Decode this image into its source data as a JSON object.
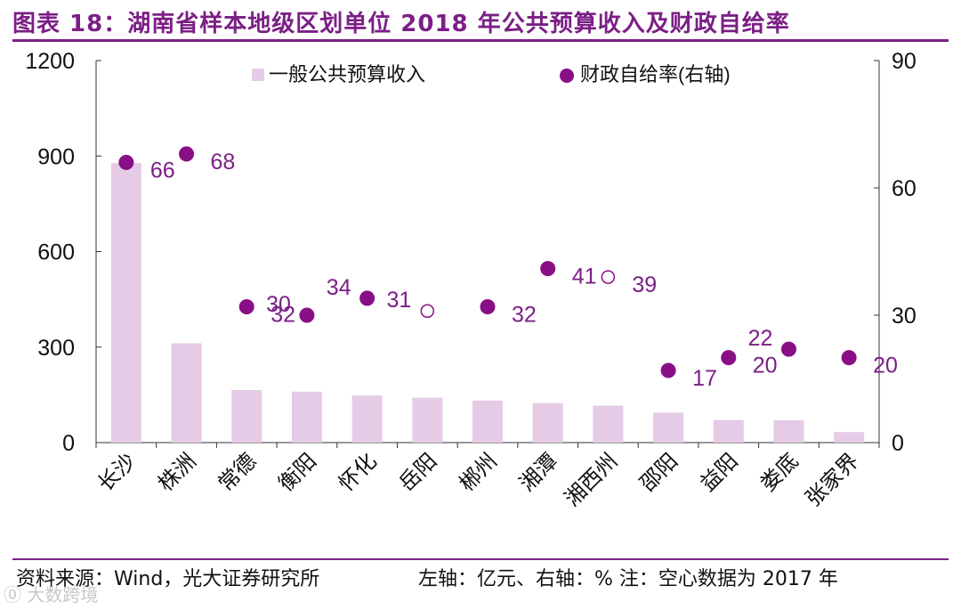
{
  "header": {
    "title": "图表 18：湖南省样本地级区划单位 2018 年公共预算收入及财政自给率"
  },
  "chart_data": {
    "type": "bar",
    "categories": [
      "长沙",
      "株洲",
      "常德",
      "衡阳",
      "怀化",
      "岳阳",
      "郴州",
      "湘潭",
      "湘西州",
      "邵阳",
      "益阳",
      "娄底",
      "张家界"
    ],
    "series": [
      {
        "name": "一般公共预算收入",
        "type": "bar",
        "axis": "left",
        "values": [
          878,
          312,
          165,
          160,
          148,
          141,
          132,
          124,
          116,
          94,
          71,
          70,
          33
        ]
      },
      {
        "name": "财政自给率(右轴)",
        "type": "scatter",
        "axis": "right",
        "values": [
          66,
          68,
          32,
          30,
          34,
          31,
          32,
          41,
          39,
          17,
          20,
          22,
          20
        ],
        "hollow": [
          false,
          false,
          false,
          false,
          false,
          true,
          false,
          false,
          true,
          false,
          false,
          false,
          false
        ]
      }
    ],
    "data_labels": [
      "66",
      "68",
      "32",
      "30",
      "34",
      "31",
      "32",
      "41",
      "39",
      "17",
      "20",
      "22",
      "20"
    ],
    "y_left": {
      "ylim": [
        0,
        1200
      ],
      "ticks": [
        "0",
        "300",
        "600",
        "900",
        "1200"
      ],
      "tick_values": [
        0,
        300,
        600,
        900,
        1200
      ]
    },
    "y_right": {
      "ylim": [
        0,
        90
      ],
      "ticks": [
        "0",
        "30",
        "60",
        "90"
      ],
      "tick_values": [
        0,
        30,
        60,
        90
      ]
    },
    "legend": {
      "position": "top",
      "entries": [
        "一般公共预算收入",
        "财政自给率(右轴)"
      ]
    },
    "grid": false,
    "colors": {
      "bar": "#e5cbe6",
      "dot": "#880f86",
      "label": "#7b1f86",
      "axis": "#333333",
      "title": "#7b1f86"
    }
  },
  "footer": {
    "source": "资料来源：Wind，光大证券研究所",
    "note": "左轴：亿元、右轴：%    注：空心数据为 2017 年"
  },
  "watermark": "⓪ 大数跨境"
}
